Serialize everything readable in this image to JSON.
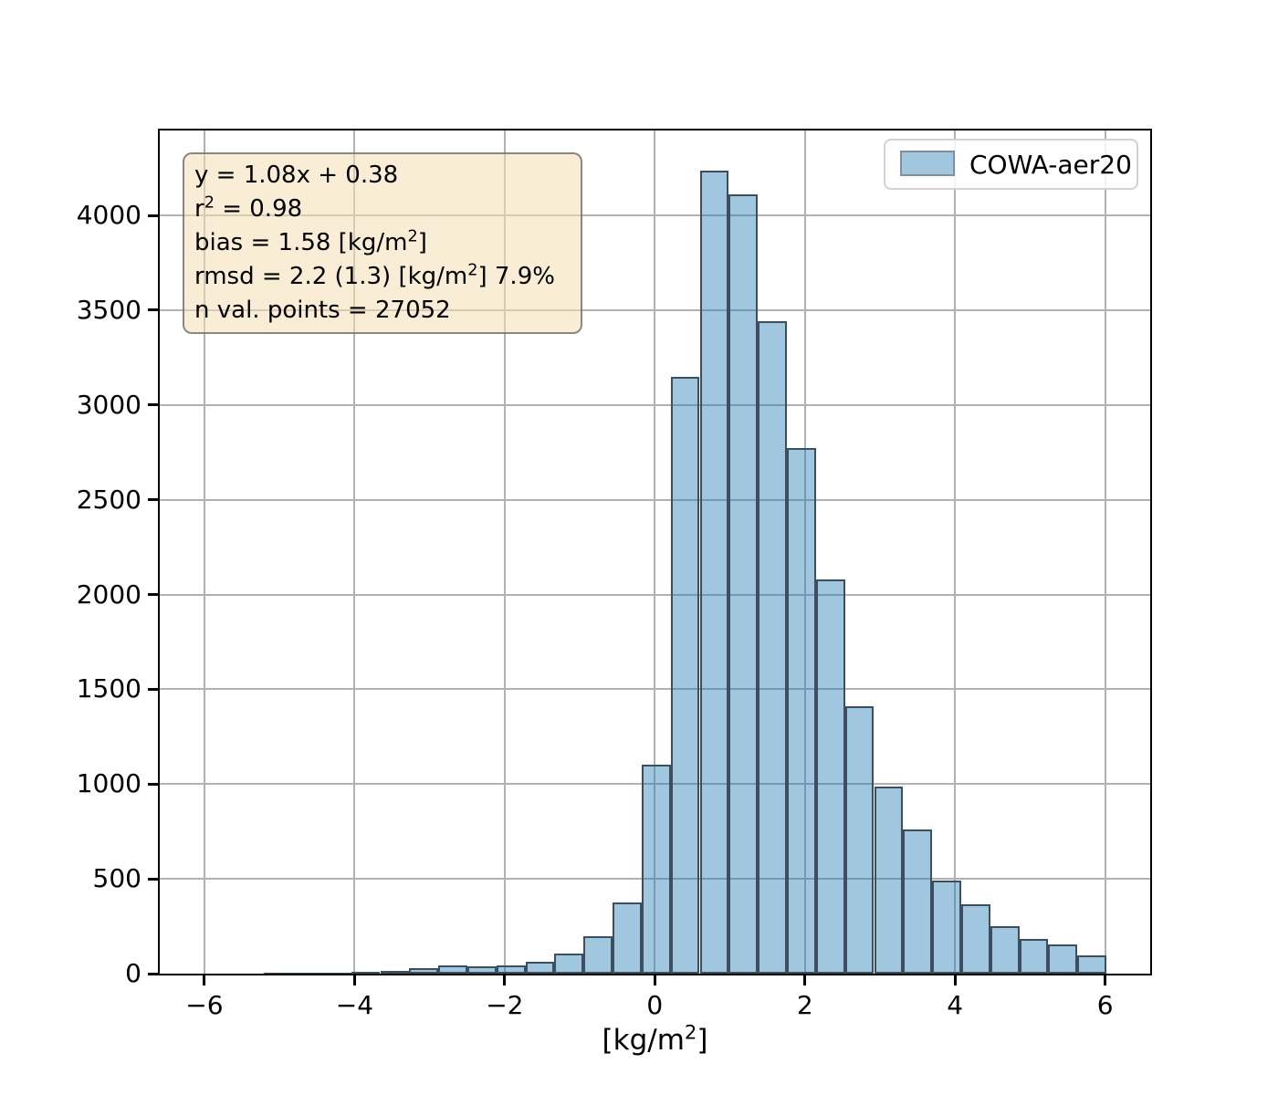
{
  "chart_data": {
    "type": "bar",
    "subtype": "histogram",
    "title": "",
    "xlabel_text": "[kg/m²]",
    "xlabel_segments": [
      {
        "t": "[kg/m"
      },
      {
        "t": "2",
        "sup": true
      },
      {
        "t": "]"
      }
    ],
    "ylabel": "",
    "xlim": [
      -6.595,
      6.6
    ],
    "ylim": [
      0,
      4448
    ],
    "xticks": [
      -6,
      -4,
      -2,
      0,
      2,
      4,
      6
    ],
    "xtick_labels": [
      "−6",
      "−4",
      "−2",
      "0",
      "2",
      "4",
      "6"
    ],
    "yticks": [
      0,
      500,
      1000,
      1500,
      2000,
      2500,
      3000,
      3500,
      4000
    ],
    "ytick_labels": [
      "0",
      "500",
      "1000",
      "1500",
      "2000",
      "2500",
      "3000",
      "3500",
      "4000"
    ],
    "grid": true,
    "legend_position": "upper right",
    "series": [
      {
        "name": "COWA-aer20",
        "bin_edges": [
          -5.206,
          -4.819,
          -4.432,
          -4.045,
          -3.658,
          -3.271,
          -2.884,
          -2.497,
          -2.11,
          -1.723,
          -1.336,
          -0.949,
          -0.562,
          -0.175,
          0.212,
          0.599,
          0.986,
          1.373,
          1.76,
          2.147,
          2.534,
          2.921,
          3.308,
          3.695,
          4.082,
          4.469,
          4.856,
          5.243,
          5.63,
          6.017
        ],
        "counts": [
          4,
          5,
          7,
          10,
          15,
          30,
          42,
          38,
          42,
          61,
          106,
          197,
          375,
          1105,
          3150,
          4235,
          4110,
          3440,
          2775,
          2080,
          1410,
          985,
          760,
          492,
          365,
          250,
          185,
          155,
          98
        ]
      }
    ]
  },
  "colors": {
    "bar_fill": "rgba(31,119,180,0.42)",
    "bar_edge": "#3d4e5e",
    "grid": "#b1b1b1",
    "spine": "#000000",
    "stats_box_bg": "rgba(245,222,179,0.55)",
    "stats_box_border": "#646464",
    "legend_bg": "#ffffff",
    "legend_border": "#d2d2d2"
  },
  "legend": {
    "label": "COWA-aer20"
  },
  "stats_box": {
    "lines": [
      {
        "text": "y = 1.08x + 0.38",
        "segments": [
          {
            "t": "y = 1.08x + 0.38"
          }
        ]
      },
      {
        "text": "r² = 0.98",
        "segments": [
          {
            "t": "r"
          },
          {
            "t": "2",
            "sup": true
          },
          {
            "t": " = 0.98"
          }
        ]
      },
      {
        "text": "bias = 1.58 [kg/m²]",
        "segments": [
          {
            "t": "bias = 1.58 [kg/m"
          },
          {
            "t": "2",
            "sup": true
          },
          {
            "t": "]"
          }
        ]
      },
      {
        "text": "rmsd = 2.2 (1.3) [kg/m²] 7.9%",
        "segments": [
          {
            "t": "rmsd = 2.2 (1.3) [kg/m"
          },
          {
            "t": "2",
            "sup": true
          },
          {
            "t": "] 7.9%"
          }
        ]
      },
      {
        "text": "n val. points = 27052",
        "segments": [
          {
            "t": "n val. points = 27052"
          }
        ]
      }
    ],
    "values": {
      "slope": 1.08,
      "intercept": 0.38,
      "r_squared": 0.98,
      "bias": 1.58,
      "bias_unit": "[kg/m²]",
      "rmsd": 2.2,
      "rmsd_secondary": 1.3,
      "rmsd_unit": "[kg/m²]",
      "rmsd_percent": "7.9%",
      "n_val_points": 27052
    }
  }
}
